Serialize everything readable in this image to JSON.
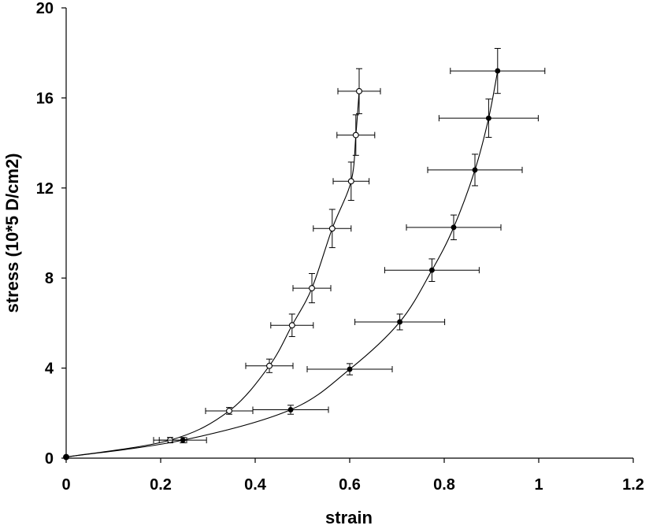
{
  "chart_data": {
    "type": "scatter",
    "title": "",
    "xlabel": "strain",
    "ylabel": "stress (10*5 D/cm2)",
    "xlim": [
      0,
      1.2
    ],
    "ylim": [
      0,
      20
    ],
    "xticks": [
      0,
      0.2,
      0.4,
      0.6,
      0.8,
      1,
      1.2
    ],
    "xtick_labels": [
      "0",
      "0.2",
      "0.4",
      "0.6",
      "0.8",
      "1",
      "1.2"
    ],
    "yticks": [
      0,
      4,
      8,
      12,
      16,
      20
    ],
    "ytick_labels": [
      "0",
      "4",
      "8",
      "12",
      "16",
      "20"
    ],
    "grid": false,
    "legend": false,
    "series": [
      {
        "marker": "open-circle",
        "color": "#000000",
        "points": [
          {
            "x": 0.0,
            "y": 0.05,
            "xerr": 0.0,
            "yerr": 0.0
          },
          {
            "x": 0.22,
            "y": 0.8,
            "xerr": 0.035,
            "yerr": 0.12
          },
          {
            "x": 0.345,
            "y": 2.1,
            "xerr": 0.05,
            "yerr": 0.15
          },
          {
            "x": 0.43,
            "y": 4.1,
            "xerr": 0.05,
            "yerr": 0.3
          },
          {
            "x": 0.478,
            "y": 5.9,
            "xerr": 0.045,
            "yerr": 0.5
          },
          {
            "x": 0.52,
            "y": 7.55,
            "xerr": 0.04,
            "yerr": 0.65
          },
          {
            "x": 0.563,
            "y": 10.2,
            "xerr": 0.04,
            "yerr": 0.85
          },
          {
            "x": 0.603,
            "y": 12.3,
            "xerr": 0.038,
            "yerr": 0.85
          },
          {
            "x": 0.613,
            "y": 14.35,
            "xerr": 0.04,
            "yerr": 0.9
          },
          {
            "x": 0.62,
            "y": 16.3,
            "xerr": 0.045,
            "yerr": 1.0
          }
        ]
      },
      {
        "marker": "filled-circle",
        "color": "#000000",
        "points": [
          {
            "x": 0.0,
            "y": 0.05,
            "xerr": 0.0,
            "yerr": 0.0
          },
          {
            "x": 0.247,
            "y": 0.8,
            "xerr": 0.05,
            "yerr": 0.12
          },
          {
            "x": 0.475,
            "y": 2.15,
            "xerr": 0.08,
            "yerr": 0.2
          },
          {
            "x": 0.6,
            "y": 3.95,
            "xerr": 0.09,
            "yerr": 0.25
          },
          {
            "x": 0.706,
            "y": 6.05,
            "xerr": 0.095,
            "yerr": 0.35
          },
          {
            "x": 0.774,
            "y": 8.35,
            "xerr": 0.1,
            "yerr": 0.5
          },
          {
            "x": 0.82,
            "y": 10.25,
            "xerr": 0.1,
            "yerr": 0.55
          },
          {
            "x": 0.865,
            "y": 12.8,
            "xerr": 0.1,
            "yerr": 0.7
          },
          {
            "x": 0.894,
            "y": 15.1,
            "xerr": 0.105,
            "yerr": 0.85
          },
          {
            "x": 0.913,
            "y": 17.2,
            "xerr": 0.1,
            "yerr": 1.0
          }
        ]
      }
    ]
  }
}
